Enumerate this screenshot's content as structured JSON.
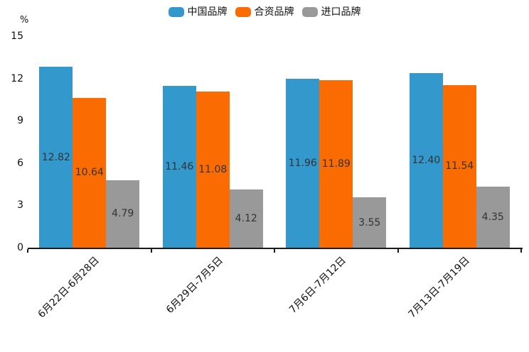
{
  "legend": {
    "position": "top"
  },
  "chart_data": {
    "type": "bar",
    "title": "",
    "unit": "%",
    "xlabel": "",
    "ylabel": "%",
    "categories": [
      "6月22日-6月28日",
      "6月29日-7月5日",
      "7月6日-7月12日",
      "7月13日-7月19日"
    ],
    "series": [
      {
        "name": "中国品牌",
        "color": "#3398CC",
        "values": [
          12.82,
          11.46,
          11.96,
          12.4
        ]
      },
      {
        "name": "合资品牌",
        "color": "#FA6C02",
        "values": [
          10.64,
          11.08,
          11.89,
          11.54
        ]
      },
      {
        "name": "进口品牌",
        "color": "#999999",
        "values": [
          4.79,
          4.12,
          3.55,
          4.35
        ]
      }
    ],
    "yticks": [
      0,
      3,
      6,
      9,
      12,
      15
    ],
    "ylim": [
      0,
      15
    ],
    "grid": false,
    "legend_position": "top",
    "value_labels": true,
    "value_label_color": "#333333",
    "axis_color": "#1a1a1a",
    "background_color": "#ffffff"
  }
}
